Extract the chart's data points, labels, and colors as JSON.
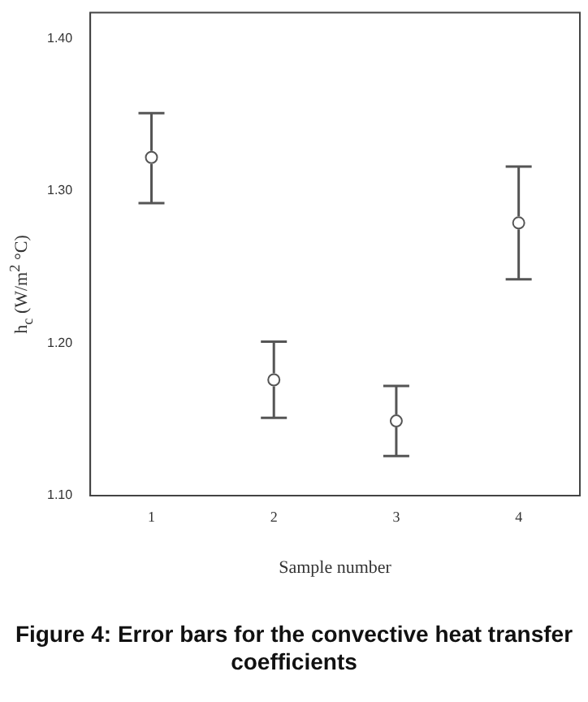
{
  "chart_data": {
    "type": "scatter",
    "title": "Figure 4: Error bars for the convective heat transfer coefficients",
    "xlabel": "Sample number",
    "ylabel": "h$_{c}$ (W/m$^{2}$ °C)",
    "categories": [
      "1",
      "2",
      "3",
      "4"
    ],
    "values": [
      1.322,
      1.176,
      1.149,
      1.279
    ],
    "errors": [
      [
        1.292,
        1.351
      ],
      [
        1.151,
        1.201
      ],
      [
        1.126,
        1.172
      ],
      [
        1.242,
        1.316
      ]
    ],
    "color": "#555555",
    "marker": "circle",
    "grid": false,
    "legend": false,
    "ylim": [
      1.1,
      1.417
    ],
    "yticks": [
      {
        "value": 1.1,
        "label": "1.10"
      },
      {
        "value": 1.2,
        "label": "1.20"
      },
      {
        "value": 1.3,
        "label": "1.30"
      },
      {
        "value": 1.4,
        "label": "1.40"
      }
    ]
  }
}
